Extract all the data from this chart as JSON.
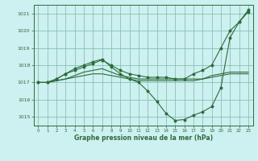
{
  "title": "Graphe pression niveau de la mer (hPa)",
  "bg_color": "#cdf0f0",
  "grid_color": "#7ab8a8",
  "line_color": "#2d6b3c",
  "xlim": [
    -0.5,
    23.5
  ],
  "ylim": [
    1014.5,
    1021.5
  ],
  "yticks": [
    1015,
    1016,
    1017,
    1018,
    1019,
    1020,
    1021
  ],
  "xticks": [
    0,
    1,
    2,
    3,
    4,
    5,
    6,
    7,
    8,
    9,
    10,
    11,
    12,
    13,
    14,
    15,
    16,
    17,
    18,
    19,
    20,
    21,
    22,
    23
  ],
  "series": [
    {
      "x": [
        0,
        1,
        2,
        3,
        4,
        5,
        6,
        7,
        8,
        9,
        10,
        11,
        12,
        13,
        14,
        15,
        16,
        17,
        18,
        19,
        20,
        21,
        22,
        23
      ],
      "y": [
        1017.0,
        1017.0,
        1017.1,
        1017.2,
        1017.3,
        1017.4,
        1017.5,
        1017.5,
        1017.4,
        1017.3,
        1017.2,
        1017.1,
        1017.1,
        1017.1,
        1017.1,
        1017.1,
        1017.1,
        1017.1,
        1017.2,
        1017.3,
        1017.4,
        1017.5,
        1017.5,
        1017.5
      ],
      "marker": false
    },
    {
      "x": [
        0,
        1,
        2,
        3,
        4,
        5,
        6,
        7,
        8,
        9,
        10,
        11,
        12,
        13,
        14,
        15,
        16,
        17,
        18,
        19,
        20,
        21,
        22,
        23
      ],
      "y": [
        1017.0,
        1017.0,
        1017.1,
        1017.2,
        1017.4,
        1017.6,
        1017.7,
        1017.8,
        1017.6,
        1017.4,
        1017.3,
        1017.2,
        1017.2,
        1017.2,
        1017.2,
        1017.2,
        1017.2,
        1017.2,
        1017.2,
        1017.4,
        1017.5,
        1017.6,
        1017.6,
        1017.6
      ],
      "marker": false
    },
    {
      "x": [
        0,
        1,
        2,
        3,
        4,
        5,
        6,
        7,
        8,
        9,
        10,
        11,
        12,
        13,
        14,
        15,
        16,
        17,
        18,
        19,
        20,
        21,
        22,
        23
      ],
      "y": [
        1017.0,
        1017.0,
        1017.2,
        1017.5,
        1017.8,
        1018.0,
        1018.2,
        1018.35,
        1017.9,
        1017.5,
        1017.2,
        1017.0,
        1016.5,
        1015.9,
        1015.2,
        1014.8,
        1014.85,
        1015.1,
        1015.3,
        1015.6,
        1016.7,
        1019.6,
        1020.5,
        1021.1
      ],
      "marker": true
    },
    {
      "x": [
        0,
        1,
        2,
        3,
        4,
        5,
        6,
        7,
        8,
        9,
        10,
        11,
        12,
        13,
        14,
        15,
        16,
        17,
        18,
        19,
        20,
        21,
        22,
        23
      ],
      "y": [
        1017.0,
        1017.0,
        1017.2,
        1017.5,
        1017.7,
        1017.9,
        1018.1,
        1018.3,
        1018.0,
        1017.7,
        1017.5,
        1017.4,
        1017.3,
        1017.3,
        1017.3,
        1017.2,
        1017.2,
        1017.5,
        1017.7,
        1018.0,
        1019.0,
        1020.0,
        1020.5,
        1021.2
      ],
      "marker": true
    }
  ]
}
